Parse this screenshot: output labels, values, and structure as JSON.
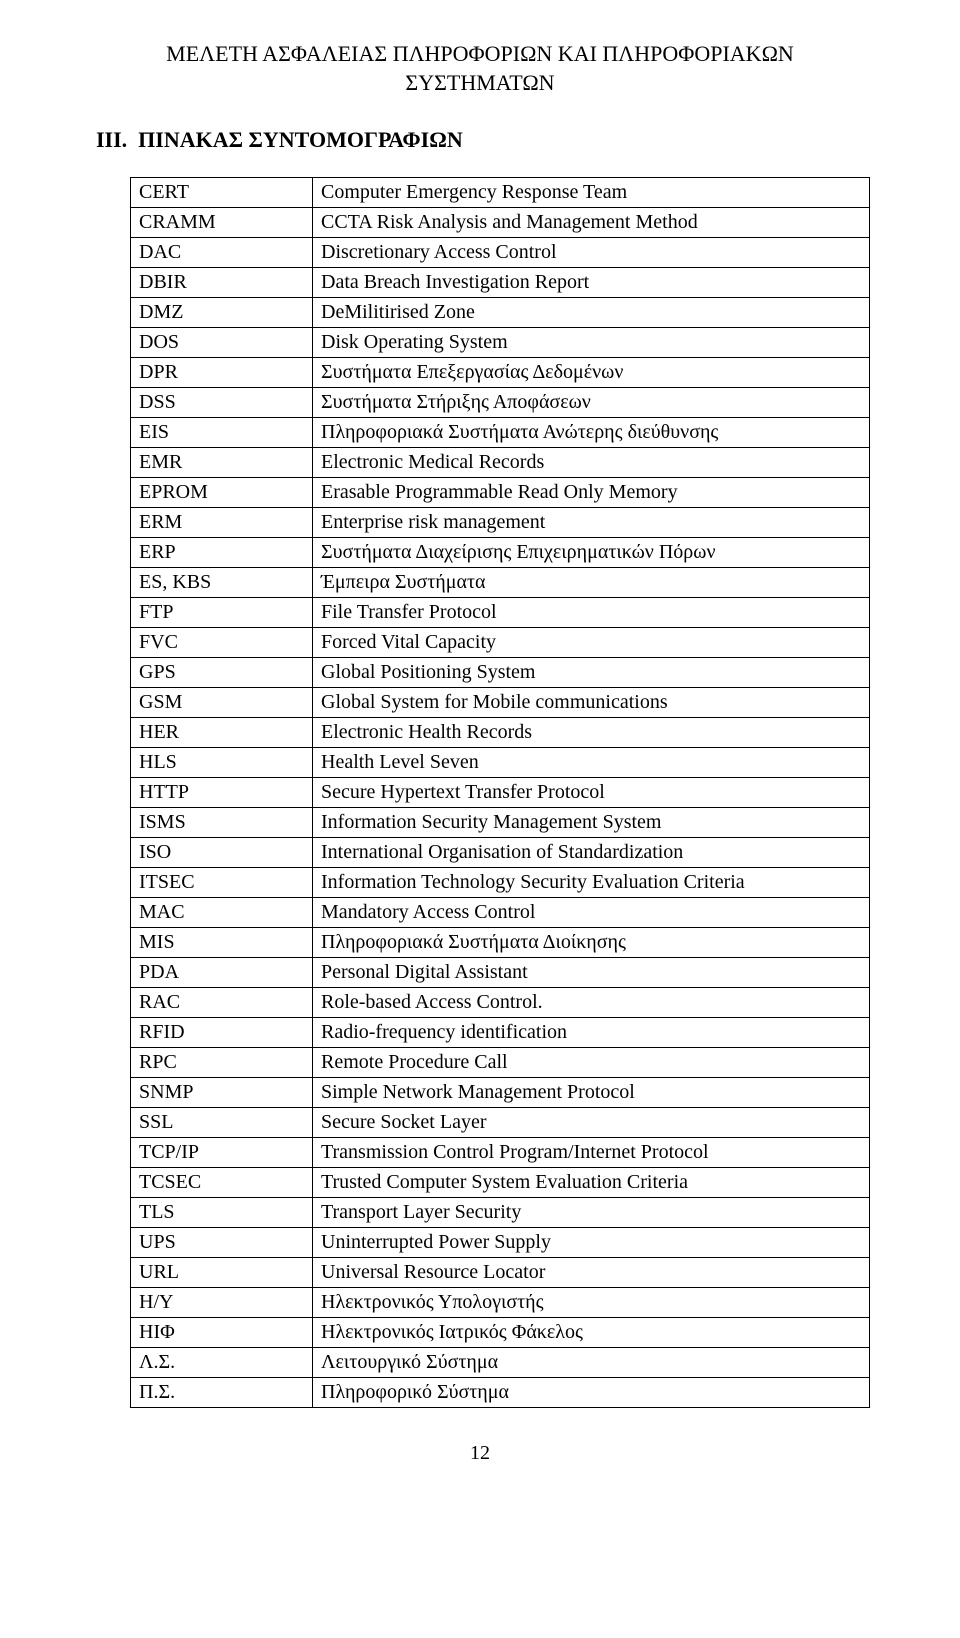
{
  "header": {
    "line1": "ΜΕΛΕΤΗ ΑΣΦΑΛΕΙΑΣ ΠΛΗΡΟΦΟΡΙΩΝ ΚΑΙ ΠΛΗΡΟΦΟΡΙΑΚΩΝ",
    "line2": "ΣΥΣΤΗΜΑΤΩΝ"
  },
  "section_heading": "III.  ΠΙΝΑΚΑΣ ΣΥΝΤΟΜΟΓΡΑΦΙΩΝ",
  "table": {
    "rows": [
      {
        "abbr": "CERT",
        "def": "Computer Emergency Response Team"
      },
      {
        "abbr": "CRAMM",
        "def": "CCTA Risk Analysis and Management Method"
      },
      {
        "abbr": "DAC",
        "def": "Discretionary Access Control"
      },
      {
        "abbr": "DBIR",
        "def": "Data Breach Investigation Report"
      },
      {
        "abbr": "DMZ",
        "def": "DeMilitirised Zone"
      },
      {
        "abbr": "DOS",
        "def": "Disk Operating System"
      },
      {
        "abbr": "DPR",
        "def": "Συστήματα Επεξεργασίας Δεδομένων"
      },
      {
        "abbr": "DSS",
        "def": "Συστήματα Στήριξης Αποφάσεων"
      },
      {
        "abbr": "EIS",
        "def": "Πληροφοριακά Συστήματα Ανώτερης διεύθυνσης"
      },
      {
        "abbr": "EMR",
        "def": "Electronic Medical Records"
      },
      {
        "abbr": "EPROM",
        "def": "Erasable Programmable Read Only Memory"
      },
      {
        "abbr": "ERM",
        "def": "Enterprise risk management"
      },
      {
        "abbr": "ERP",
        "def": "Συστήματα Διαχείρισης Επιχειρηματικών Πόρων"
      },
      {
        "abbr": "ES, KBS",
        "def": "Έμπειρα Συστήματα"
      },
      {
        "abbr": "FTP",
        "def": "File Transfer Protocol"
      },
      {
        "abbr": "FVC",
        "def": "Forced Vital Capacity"
      },
      {
        "abbr": "GPS",
        "def": "Global Positioning System"
      },
      {
        "abbr": "GSM",
        "def": "Global System for Mobile communications"
      },
      {
        "abbr": "HER",
        "def": "Electronic Health Records"
      },
      {
        "abbr": "HLS",
        "def": "Health Level Seven"
      },
      {
        "abbr": "HTTP",
        "def": "Secure Hypertext Transfer Protocol"
      },
      {
        "abbr": "ISMS",
        "def": "Information Security Management System"
      },
      {
        "abbr": "ISO",
        "def": "International Organisation of Standardization"
      },
      {
        "abbr": "ITSEC",
        "def": "Information Technology Security Evaluation Criteria"
      },
      {
        "abbr": "MAC",
        "def": "Mandatory Access Control"
      },
      {
        "abbr": "MIS",
        "def": "Πληροφοριακά Συστήματα Διοίκησης"
      },
      {
        "abbr": "PDA",
        "def": "Personal Digital Assistant"
      },
      {
        "abbr": "RAC",
        "def": "Role-based Access Control."
      },
      {
        "abbr": "RFID",
        "def": "Radio-frequency identification"
      },
      {
        "abbr": "RPC",
        "def": "Remote Procedure Call"
      },
      {
        "abbr": "SNMP",
        "def": "Simple Network Management Protocol"
      },
      {
        "abbr": "SSL",
        "def": "Secure Socket Layer"
      },
      {
        "abbr": "TCP/IP",
        "def": "Transmission Control Program/Internet Protocol"
      },
      {
        "abbr": "TCSEC",
        "def": "Trusted Computer System Evaluation Criteria"
      },
      {
        "abbr": "TLS",
        "def": "Transport Layer Security"
      },
      {
        "abbr": "UPS",
        "def": "Uninterrupted Power Supply"
      },
      {
        "abbr": "URL",
        "def": " Universal Resource Locator"
      },
      {
        "abbr": "Η/Υ",
        "def": "Ηλεκτρονικός Υπολογιστής"
      },
      {
        "abbr": "ΗΙΦ",
        "def": "Ηλεκτρονικός Ιατρικός Φάκελος"
      },
      {
        "abbr": "Λ.Σ.",
        "def": "Λειτουργικό Σύστημα"
      },
      {
        "abbr": "Π.Σ.",
        "def": "Πληροφορικό Σύστημα"
      }
    ]
  },
  "page_number": "12"
}
